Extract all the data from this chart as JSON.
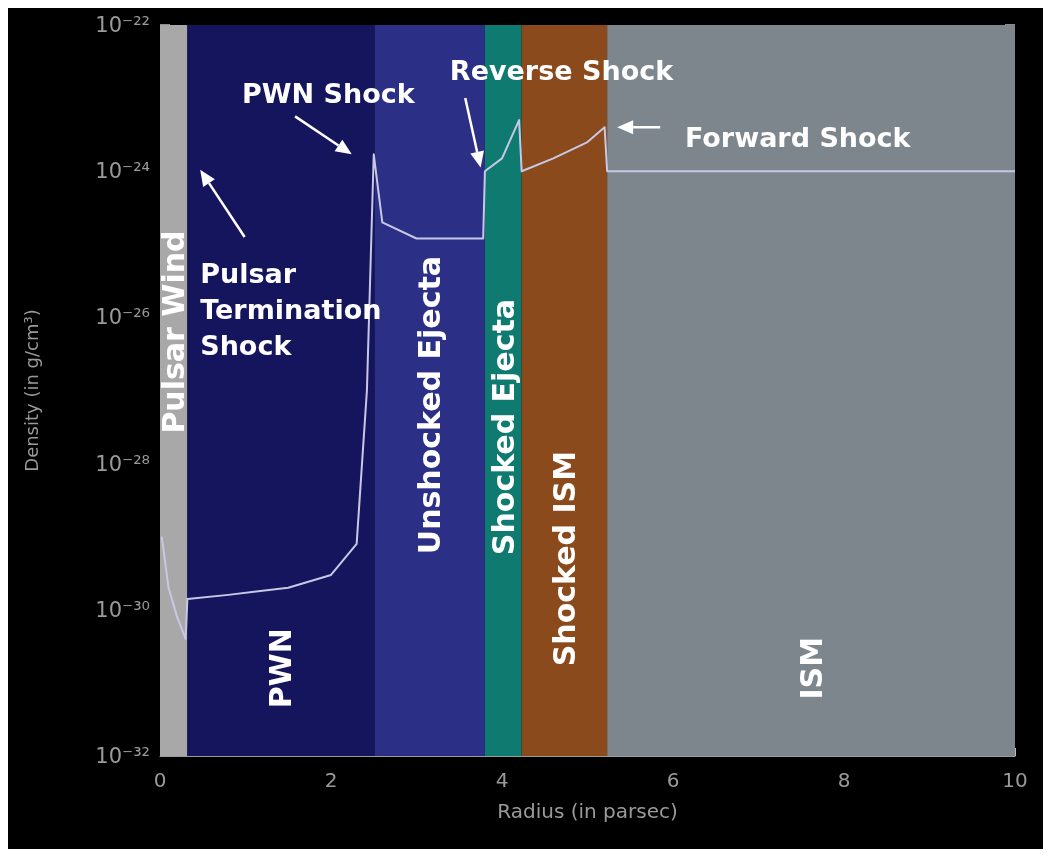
{
  "chart_data": {
    "type": "line",
    "xlabel": "Radius (in parsec)",
    "ylabel": "Density (in g/cm³)",
    "log": "y",
    "xlim": [
      0,
      10
    ],
    "xticks": [
      0,
      2,
      4,
      6,
      8,
      10
    ],
    "ylim": [
      1e-32,
      1e-22
    ],
    "yticks": [
      {
        "value": 1e-32,
        "label": "10⁻³²"
      },
      {
        "value": 1e-31,
        "label": null
      },
      {
        "value": 1e-30,
        "label": "10⁻³⁰"
      },
      {
        "value": 1e-29,
        "label": null
      },
      {
        "value": 1e-28,
        "label": "10⁻²⁸"
      },
      {
        "value": 1e-27,
        "label": null
      },
      {
        "value": 1e-26,
        "label": "10⁻²⁶"
      },
      {
        "value": 1e-25,
        "label": null
      },
      {
        "value": 1e-24,
        "label": "10⁻²⁴"
      },
      {
        "value": 1e-23,
        "label": null
      },
      {
        "value": 1e-22,
        "label": "10⁻²²"
      }
    ],
    "grid": false,
    "marker": "none",
    "line_style": "solid",
    "series": [
      {
        "color": "#c8c8e6",
        "x": [
          0.02,
          0.1,
          0.2,
          0.3,
          0.32,
          0.8,
          1.5,
          2.0,
          2.3,
          2.42,
          2.5,
          2.6,
          3.0,
          3.78,
          3.8,
          4.0,
          4.2,
          4.23,
          4.6,
          5.0,
          5.2,
          5.23,
          7,
          10
        ],
        "values": [
          1e-29,
          2e-30,
          8e-31,
          4e-31,
          1.4e-30,
          1.6e-30,
          2e-30,
          3e-30,
          8e-30,
          1e-27,
          1.7e-24,
          2e-25,
          1.2e-25,
          1.2e-25,
          1e-24,
          1.5e-24,
          5e-24,
          1e-24,
          1.5e-24,
          2.5e-24,
          4e-24,
          1e-24,
          1e-24,
          1e-24
        ]
      }
    ],
    "bands": [
      {
        "axis": "x",
        "from": 0,
        "to": 0.32,
        "label": "Pulsar Wind",
        "color": "#a8a8a8"
      },
      {
        "axis": "x",
        "from": 0.32,
        "to": 2.51,
        "label": "PWN",
        "color": "#15155e"
      },
      {
        "axis": "x",
        "from": 2.51,
        "to": 3.8,
        "label": "Unshocked Ejecta",
        "color": "#2b2f86"
      },
      {
        "axis": "x",
        "from": 3.8,
        "to": 4.23,
        "label": "Shocked Ejecta",
        "color": "#0e7a70"
      },
      {
        "axis": "x",
        "from": 4.23,
        "to": 5.23,
        "label": "Shocked ISM",
        "color": "#8a4a1c"
      },
      {
        "axis": "x",
        "from": 5.23,
        "to": 10,
        "label": "ISM",
        "color": "#7e868d"
      }
    ],
    "annotations": [
      {
        "text": "PWN Shock",
        "x": 2.5,
        "y": 1.7e-24
      },
      "Pulsar\nTermination\nShock",
      "Reverse Shock",
      {
        "text": "Forward Shock",
        "x": 5.23,
        "y": 4e-24
      }
    ]
  }
}
